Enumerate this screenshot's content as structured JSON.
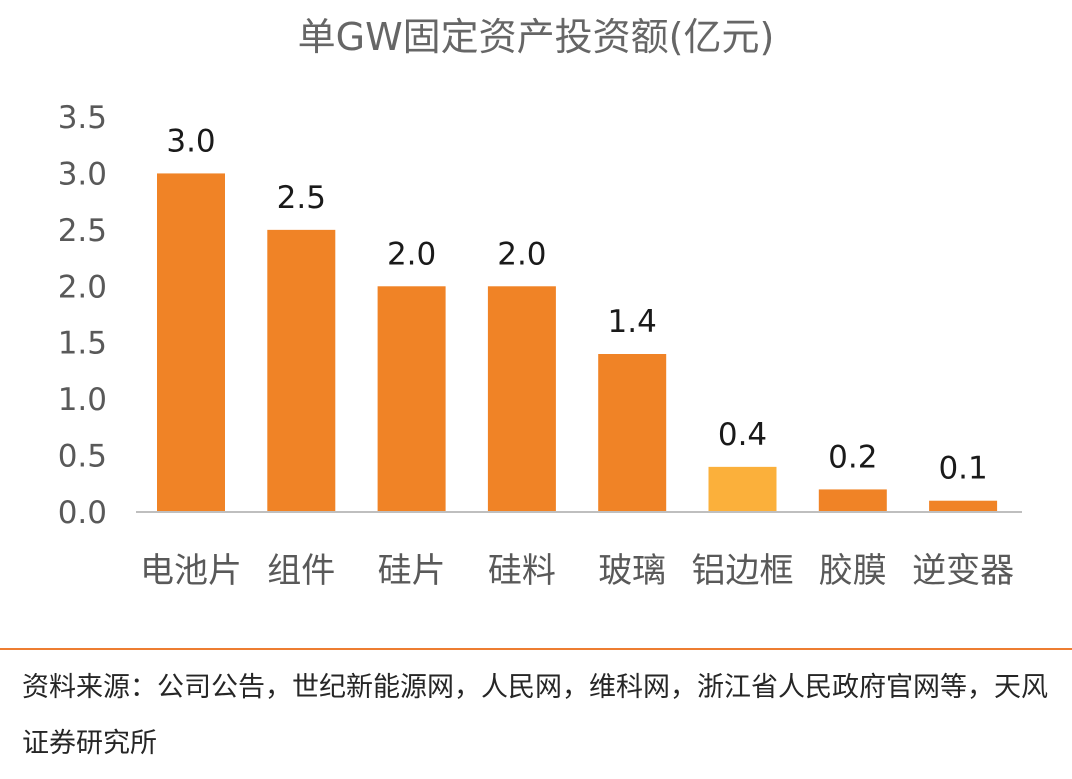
{
  "colors": {
    "bar": "#f08326",
    "bar_highlight": "#fbb03b",
    "axis": "#bfbfbf",
    "divider": "#ed7d31"
  },
  "chart_data": {
    "type": "bar",
    "title": "单GW固定资产投资额(亿元)",
    "categories": [
      "电池片",
      "组件",
      "硅片",
      "硅料",
      "玻璃",
      "铝边框",
      "胶膜",
      "逆变器"
    ],
    "values": [
      3.0,
      2.5,
      2.0,
      2.0,
      1.4,
      0.4,
      0.2,
      0.1
    ],
    "value_labels": [
      "3.0",
      "2.5",
      "2.0",
      "2.0",
      "1.4",
      "0.4",
      "0.2",
      "0.1"
    ],
    "highlight_index": 5,
    "ylim": [
      0,
      3.5
    ],
    "yticks": [
      "0.0",
      "0.5",
      "1.0",
      "1.5",
      "2.0",
      "2.5",
      "3.0",
      "3.5"
    ],
    "xlabel": "",
    "ylabel": "",
    "grid": false,
    "legend": "none"
  },
  "footer": {
    "source_text": "资料来源：公司公告，世纪新能源网，人民网，维科网，浙江省人民政府官网等，天风证券研究所"
  }
}
